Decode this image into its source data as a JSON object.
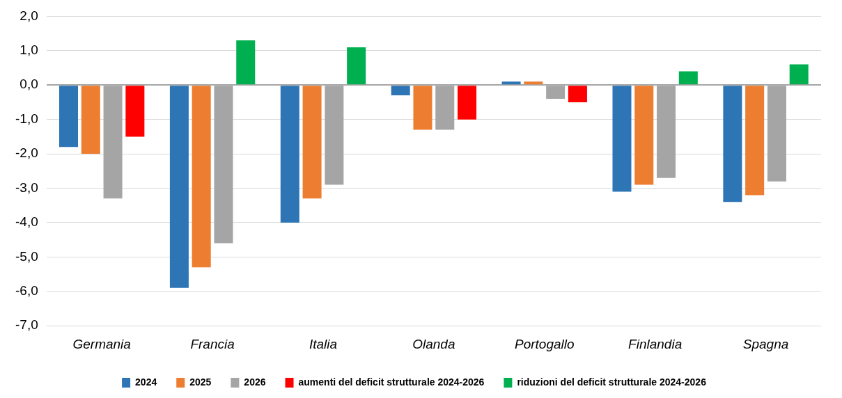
{
  "chart_data": {
    "type": "bar",
    "categories": [
      "Germania",
      "Francia",
      "Italia",
      "Olanda",
      "Portogallo",
      "Finlandia",
      "Spagna"
    ],
    "series": [
      {
        "name": "2024",
        "color": "#2e75b6",
        "values": [
          -1.8,
          -5.9,
          -4.0,
          -0.3,
          0.1,
          -3.1,
          -3.4
        ]
      },
      {
        "name": "2025",
        "color": "#ed7d31",
        "values": [
          -2.0,
          -5.3,
          -3.3,
          -1.3,
          0.1,
          -2.9,
          -3.2
        ]
      },
      {
        "name": "2026",
        "color": "#a5a5a5",
        "values": [
          -3.3,
          -4.6,
          -2.9,
          -1.3,
          -0.4,
          -2.7,
          -2.8
        ]
      },
      {
        "name": "aumenti del deficit strutturale 2024-2026",
        "color": "#ff0000",
        "values": [
          -1.5,
          null,
          null,
          -1.0,
          -0.5,
          null,
          null
        ]
      },
      {
        "name": "riduzioni del deficit strutturale 2024-2026",
        "color": "#00b050",
        "values": [
          null,
          1.3,
          1.1,
          null,
          null,
          0.4,
          0.6
        ]
      }
    ],
    "ylim": [
      -7,
      2
    ],
    "yticks": [
      {
        "value": -7,
        "label": "-7,0"
      },
      {
        "value": -6,
        "label": "-6,0"
      },
      {
        "value": -5,
        "label": "-5,0"
      },
      {
        "value": -4,
        "label": "-4,0"
      },
      {
        "value": -3,
        "label": "-3,0"
      },
      {
        "value": -2,
        "label": "-2,0"
      },
      {
        "value": -1,
        "label": "-1,0"
      },
      {
        "value": 0,
        "label": "0,0"
      },
      {
        "value": 1,
        "label": "1,0"
      },
      {
        "value": 2,
        "label": "2,0"
      }
    ],
    "grid": "y",
    "legend": "bottom"
  }
}
